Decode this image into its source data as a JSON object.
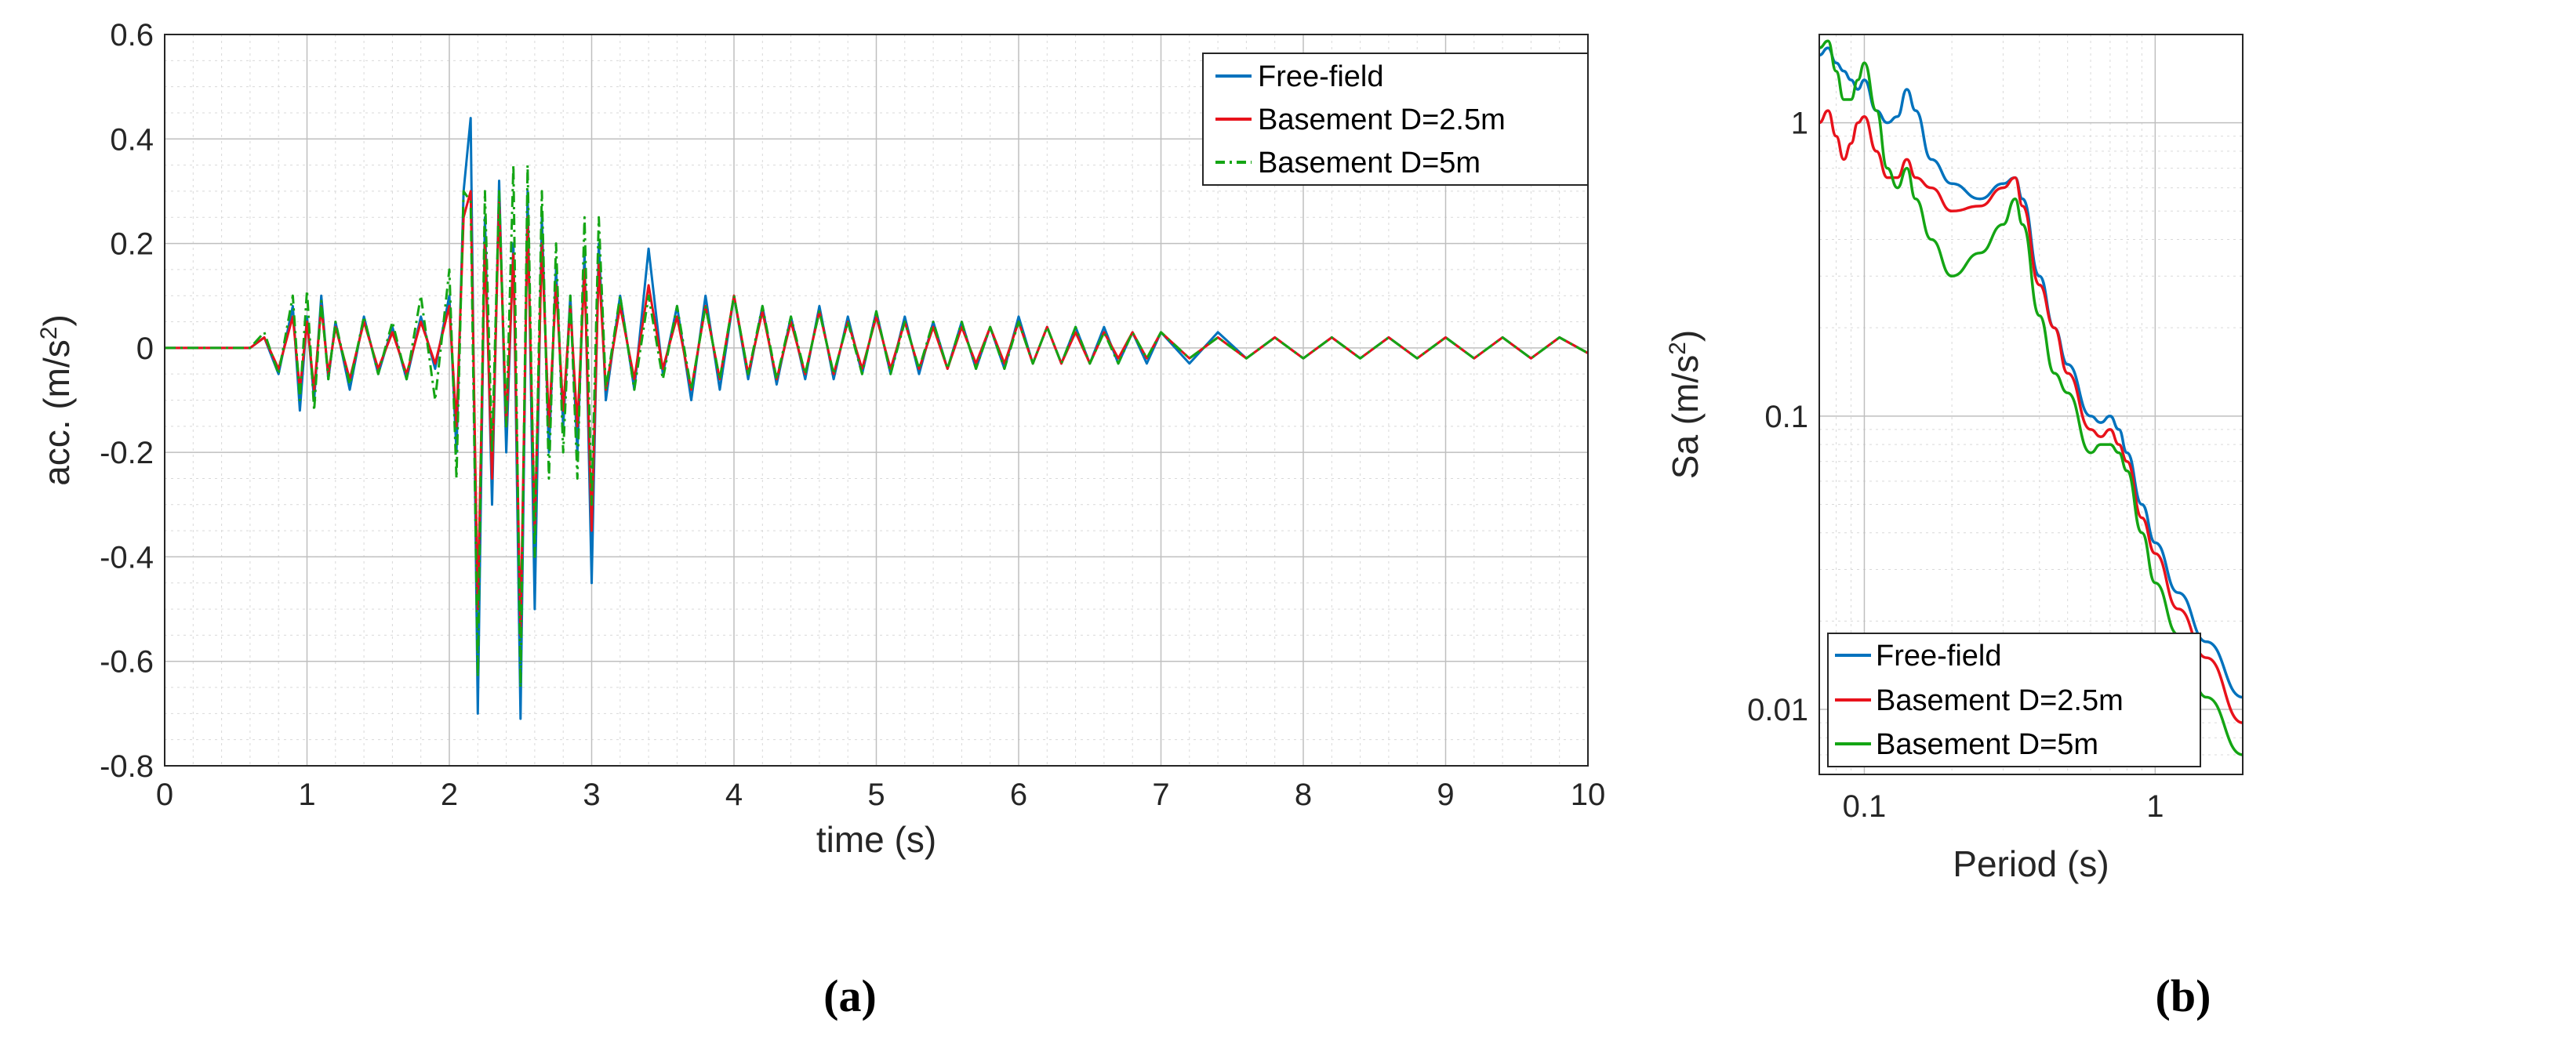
{
  "colors": {
    "free_field": "#0072BD",
    "basement_25": "#E8121B",
    "basement_5": "#14A514",
    "grid": "#D9D9D9",
    "axis": "#262626"
  },
  "chart_data": [
    {
      "type": "line",
      "panel_label": "(a)",
      "xlabel": "time (s)",
      "ylabel": "acc. (m/s",
      "ylabel_sup": "2",
      "ylabel_close": ")",
      "xlim": [
        0,
        10
      ],
      "ylim": [
        -0.8,
        0.6
      ],
      "xticks": [
        0,
        1,
        2,
        3,
        4,
        5,
        6,
        7,
        8,
        9,
        10
      ],
      "yticks": [
        -0.8,
        -0.6,
        -0.4,
        -0.2,
        0,
        0.2,
        0.4,
        0.6
      ],
      "xtick_labels": [
        "0",
        "1",
        "2",
        "3",
        "4",
        "5",
        "6",
        "7",
        "8",
        "9",
        "10"
      ],
      "ytick_labels": [
        "-0.8",
        "-0.6",
        "-0.4",
        "-0.2",
        "0",
        "0.2",
        "0.4",
        "0.6"
      ],
      "legend_position": "top-right",
      "series": [
        {
          "name": "Free-field",
          "style": "solid",
          "x": [
            0,
            0.6,
            0.7,
            0.8,
            0.9,
            0.95,
            1.0,
            1.05,
            1.1,
            1.15,
            1.2,
            1.3,
            1.4,
            1.5,
            1.6,
            1.7,
            1.8,
            1.9,
            2.0,
            2.05,
            2.1,
            2.15,
            2.2,
            2.25,
            2.3,
            2.35,
            2.4,
            2.45,
            2.5,
            2.55,
            2.6,
            2.65,
            2.7,
            2.75,
            2.8,
            2.85,
            2.9,
            2.95,
            3.0,
            3.05,
            3.1,
            3.2,
            3.3,
            3.4,
            3.5,
            3.6,
            3.7,
            3.8,
            3.9,
            4.0,
            4.1,
            4.2,
            4.3,
            4.4,
            4.5,
            4.6,
            4.7,
            4.8,
            4.9,
            5.0,
            5.1,
            5.2,
            5.3,
            5.4,
            5.5,
            5.6,
            5.7,
            5.8,
            5.9,
            6.0,
            6.1,
            6.2,
            6.3,
            6.4,
            6.5,
            6.6,
            6.7,
            6.8,
            6.9,
            7.0,
            7.2,
            7.4,
            7.6,
            7.8,
            8.0,
            8.2,
            8.4,
            8.6,
            8.8,
            9.0,
            9.2,
            9.4,
            9.6,
            9.8,
            10.0
          ],
          "y": [
            0,
            0,
            0.02,
            -0.05,
            0.08,
            -0.12,
            0.06,
            -0.1,
            0.1,
            -0.06,
            0.05,
            -0.08,
            0.06,
            -0.05,
            0.04,
            -0.06,
            0.06,
            -0.04,
            0.1,
            -0.2,
            0.3,
            0.44,
            -0.7,
            0.25,
            -0.3,
            0.32,
            -0.2,
            0.2,
            -0.71,
            0.3,
            -0.5,
            0.25,
            -0.2,
            0.15,
            -0.15,
            0.1,
            -0.2,
            0.18,
            -0.45,
            0.2,
            -0.1,
            0.1,
            -0.08,
            0.19,
            -0.05,
            0.08,
            -0.1,
            0.1,
            -0.08,
            0.1,
            -0.06,
            0.08,
            -0.07,
            0.06,
            -0.06,
            0.08,
            -0.06,
            0.06,
            -0.05,
            0.07,
            -0.05,
            0.06,
            -0.05,
            0.05,
            -0.04,
            0.05,
            -0.04,
            0.04,
            -0.04,
            0.06,
            -0.03,
            0.04,
            -0.03,
            0.04,
            -0.03,
            0.04,
            -0.03,
            0.03,
            -0.03,
            0.03,
            -0.03,
            0.03,
            -0.02,
            0.02,
            -0.02,
            0.02,
            -0.02,
            0.02,
            -0.02,
            0.02,
            -0.02,
            0.02,
            -0.02,
            0.02,
            -0.01
          ]
        },
        {
          "name": "Basement D=2.5m",
          "style": "solid",
          "x": [
            0,
            0.6,
            0.7,
            0.8,
            0.9,
            0.95,
            1.0,
            1.05,
            1.1,
            1.15,
            1.2,
            1.3,
            1.4,
            1.5,
            1.6,
            1.7,
            1.8,
            1.9,
            2.0,
            2.05,
            2.1,
            2.15,
            2.2,
            2.25,
            2.3,
            2.35,
            2.4,
            2.45,
            2.5,
            2.55,
            2.6,
            2.65,
            2.7,
            2.75,
            2.8,
            2.85,
            2.9,
            2.95,
            3.0,
            3.05,
            3.1,
            3.2,
            3.3,
            3.4,
            3.5,
            3.6,
            3.7,
            3.8,
            3.9,
            4.0,
            4.1,
            4.2,
            4.3,
            4.4,
            4.5,
            4.6,
            4.7,
            4.8,
            4.9,
            5.0,
            5.1,
            5.2,
            5.3,
            5.4,
            5.5,
            5.6,
            5.7,
            5.8,
            5.9,
            6.0,
            6.1,
            6.2,
            6.3,
            6.4,
            6.5,
            6.6,
            6.7,
            6.8,
            6.9,
            7.0,
            7.2,
            7.4,
            7.6,
            7.8,
            8.0,
            8.2,
            8.4,
            8.6,
            8.8,
            9.0,
            9.2,
            9.4,
            9.6,
            9.8,
            10.0
          ],
          "y": [
            0,
            0,
            0.02,
            -0.04,
            0.06,
            -0.08,
            0.05,
            -0.08,
            0.08,
            -0.05,
            0.04,
            -0.06,
            0.05,
            -0.04,
            0.03,
            -0.05,
            0.05,
            -0.03,
            0.08,
            -0.15,
            0.25,
            0.3,
            -0.5,
            0.2,
            -0.25,
            0.28,
            -0.15,
            0.18,
            -0.55,
            0.25,
            -0.35,
            0.2,
            -0.15,
            0.12,
            -0.12,
            0.08,
            -0.15,
            0.15,
            -0.35,
            0.16,
            -0.08,
            0.08,
            -0.06,
            0.12,
            -0.04,
            0.06,
            -0.08,
            0.08,
            -0.06,
            0.1,
            -0.05,
            0.07,
            -0.06,
            0.05,
            -0.05,
            0.07,
            -0.05,
            0.05,
            -0.04,
            0.06,
            -0.04,
            0.05,
            -0.04,
            0.04,
            -0.04,
            0.04,
            -0.03,
            0.04,
            -0.03,
            0.05,
            -0.03,
            0.04,
            -0.03,
            0.03,
            -0.03,
            0.03,
            -0.02,
            0.03,
            -0.02,
            0.03,
            -0.02,
            0.02,
            -0.02,
            0.02,
            -0.02,
            0.02,
            -0.02,
            0.02,
            -0.02,
            0.02,
            -0.02,
            0.02,
            -0.02,
            0.02,
            -0.01
          ]
        },
        {
          "name": "Basement D=5m",
          "style": "dashdot",
          "x": [
            0,
            0.6,
            0.7,
            0.8,
            0.9,
            0.95,
            1.0,
            1.05,
            1.1,
            1.15,
            1.2,
            1.3,
            1.4,
            1.5,
            1.6,
            1.7,
            1.8,
            1.9,
            2.0,
            2.05,
            2.1,
            2.15,
            2.2,
            2.25,
            2.3,
            2.35,
            2.4,
            2.45,
            2.5,
            2.55,
            2.6,
            2.65,
            2.7,
            2.75,
            2.8,
            2.85,
            2.9,
            2.95,
            3.0,
            3.05,
            3.1,
            3.2,
            3.3,
            3.4,
            3.5,
            3.6,
            3.7,
            3.8,
            3.9,
            4.0,
            4.1,
            4.2,
            4.3,
            4.4,
            4.5,
            4.6,
            4.7,
            4.8,
            4.9,
            5.0,
            5.1,
            5.2,
            5.3,
            5.4,
            5.5,
            5.6,
            5.7,
            5.8,
            5.9,
            6.0,
            6.1,
            6.2,
            6.3,
            6.4,
            6.5,
            6.6,
            6.7,
            6.8,
            6.9,
            7.0,
            7.2,
            7.4,
            7.6,
            7.8,
            8.0,
            8.2,
            8.4,
            8.6,
            8.8,
            9.0,
            9.2,
            9.4,
            9.6,
            9.8,
            10.0
          ],
          "y": [
            0,
            0,
            0.03,
            -0.05,
            0.1,
            -0.1,
            0.11,
            -0.12,
            0.09,
            -0.06,
            0.05,
            -0.07,
            0.06,
            -0.05,
            0.05,
            -0.06,
            0.1,
            -0.1,
            0.15,
            -0.25,
            0.3,
            0.28,
            -0.63,
            0.3,
            -0.2,
            0.3,
            -0.15,
            0.35,
            -0.65,
            0.35,
            -0.4,
            0.3,
            -0.25,
            0.2,
            -0.2,
            0.1,
            -0.25,
            0.25,
            -0.3,
            0.25,
            -0.08,
            0.1,
            -0.08,
            0.1,
            -0.06,
            0.08,
            -0.08,
            0.08,
            -0.06,
            0.1,
            -0.05,
            0.08,
            -0.06,
            0.06,
            -0.05,
            0.07,
            -0.05,
            0.05,
            -0.05,
            0.07,
            -0.05,
            0.05,
            -0.04,
            0.05,
            -0.04,
            0.05,
            -0.04,
            0.04,
            -0.04,
            0.05,
            -0.03,
            0.04,
            -0.03,
            0.04,
            -0.03,
            0.03,
            -0.03,
            0.03,
            -0.02,
            0.03,
            -0.02,
            0.02,
            -0.02,
            0.02,
            -0.02,
            0.02,
            -0.02,
            0.02,
            -0.02,
            0.02,
            -0.02,
            0.02,
            -0.02,
            0.02,
            -0.01
          ]
        }
      ]
    },
    {
      "type": "line",
      "panel_label": "(b)",
      "xscale": "log",
      "yscale": "log",
      "xlabel": "Period (s)",
      "ylabel": "Sa (m/s",
      "ylabel_sup": "2",
      "ylabel_close": ")",
      "xlim": [
        0.07,
        2
      ],
      "ylim": [
        0.006,
        2
      ],
      "xticks": [
        0.1,
        1
      ],
      "yticks": [
        0.01,
        0.1,
        1
      ],
      "xtick_labels": [
        "0.1",
        "1"
      ],
      "ytick_labels": [
        "0.01",
        "0.1",
        "1"
      ],
      "legend_position": "bottom-left",
      "series": [
        {
          "name": "Free-field",
          "style": "solid",
          "x": [
            0.07,
            0.075,
            0.08,
            0.085,
            0.09,
            0.095,
            0.1,
            0.11,
            0.12,
            0.13,
            0.14,
            0.15,
            0.17,
            0.2,
            0.25,
            0.3,
            0.33,
            0.35,
            0.4,
            0.45,
            0.5,
            0.6,
            0.65,
            0.7,
            0.75,
            0.8,
            0.9,
            1.0,
            1.2,
            1.5,
            2.0
          ],
          "y": [
            1.7,
            1.8,
            1.6,
            1.5,
            1.4,
            1.3,
            1.4,
            1.1,
            1.0,
            1.05,
            1.3,
            1.1,
            0.75,
            0.62,
            0.55,
            0.62,
            0.65,
            0.55,
            0.3,
            0.2,
            0.15,
            0.1,
            0.095,
            0.1,
            0.09,
            0.075,
            0.05,
            0.037,
            0.025,
            0.017,
            0.011
          ]
        },
        {
          "name": "Basement D=2.5m",
          "style": "solid",
          "x": [
            0.07,
            0.075,
            0.08,
            0.085,
            0.09,
            0.095,
            0.1,
            0.11,
            0.12,
            0.13,
            0.14,
            0.15,
            0.17,
            0.2,
            0.25,
            0.3,
            0.33,
            0.35,
            0.4,
            0.45,
            0.5,
            0.6,
            0.65,
            0.7,
            0.75,
            0.8,
            0.9,
            1.0,
            1.2,
            1.5,
            2.0
          ],
          "y": [
            1.0,
            1.1,
            0.9,
            0.75,
            0.85,
            1.0,
            1.05,
            0.8,
            0.65,
            0.65,
            0.75,
            0.65,
            0.6,
            0.5,
            0.52,
            0.6,
            0.65,
            0.52,
            0.28,
            0.2,
            0.14,
            0.09,
            0.085,
            0.09,
            0.08,
            0.07,
            0.045,
            0.034,
            0.022,
            0.015,
            0.009
          ]
        },
        {
          "name": "Basement D=5m",
          "style": "solid",
          "x": [
            0.07,
            0.075,
            0.08,
            0.085,
            0.09,
            0.095,
            0.1,
            0.11,
            0.12,
            0.13,
            0.14,
            0.15,
            0.17,
            0.2,
            0.25,
            0.3,
            0.33,
            0.35,
            0.4,
            0.45,
            0.5,
            0.6,
            0.65,
            0.7,
            0.75,
            0.8,
            0.9,
            1.0,
            1.2,
            1.5,
            2.0
          ],
          "y": [
            1.8,
            1.9,
            1.5,
            1.2,
            1.2,
            1.4,
            1.6,
            1.1,
            0.7,
            0.6,
            0.7,
            0.55,
            0.4,
            0.3,
            0.36,
            0.45,
            0.55,
            0.45,
            0.22,
            0.14,
            0.12,
            0.075,
            0.08,
            0.08,
            0.075,
            0.065,
            0.04,
            0.027,
            0.018,
            0.011,
            0.007
          ]
        }
      ]
    }
  ]
}
